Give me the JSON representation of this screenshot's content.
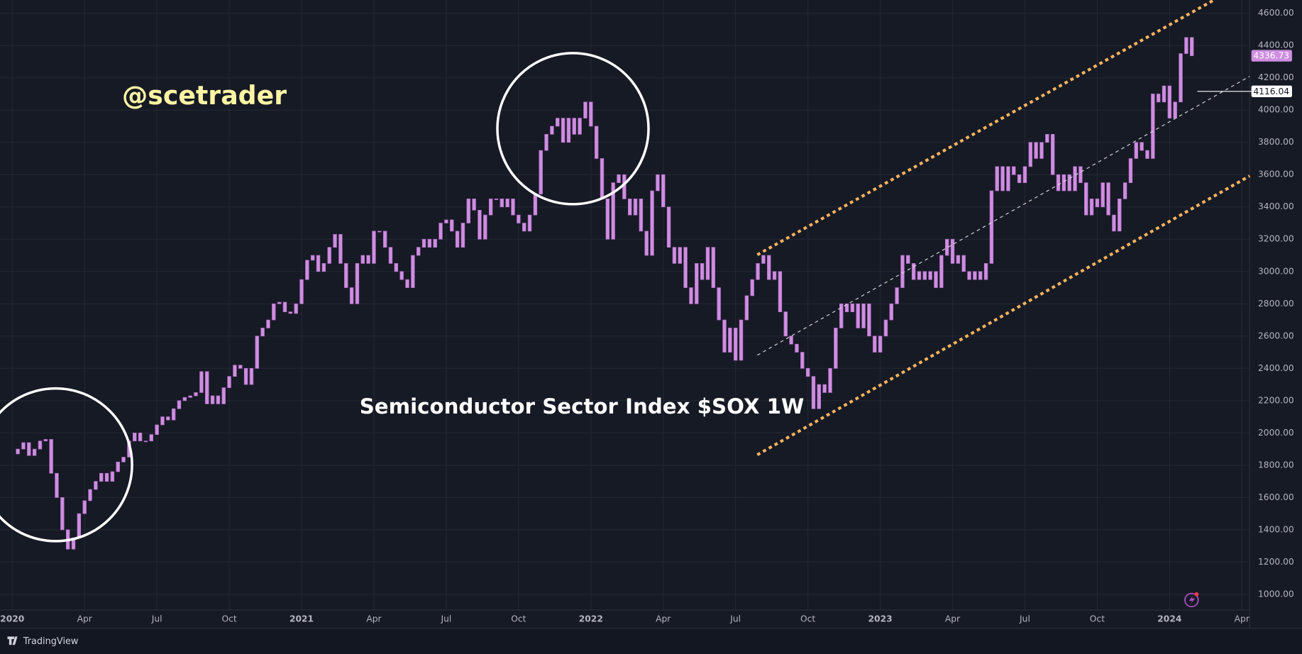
{
  "chart_data": {
    "type": "candlestick",
    "title": "Semiconductor Sector Index $SOX 1W",
    "watermark": "@scetrader",
    "brand": "TradingView",
    "color": "#ce8ee0",
    "values": [
      1870,
      1900,
      1940,
      1860,
      1900,
      1950,
      1960,
      1750,
      1600,
      1400,
      1280,
      1350,
      1500,
      1580,
      1650,
      1700,
      1750,
      1700,
      1760,
      1820,
      1850,
      1950,
      2000,
      1950,
      1950,
      1990,
      2050,
      2100,
      2080,
      2150,
      2200,
      2220,
      2230,
      2250,
      2380,
      2180,
      2230,
      2180,
      2280,
      2350,
      2420,
      2400,
      2300,
      2400,
      2600,
      2650,
      2700,
      2800,
      2810,
      2750,
      2740,
      2800,
      2950,
      3070,
      3100,
      3000,
      3050,
      3150,
      3230,
      3050,
      2900,
      2800,
      3050,
      3100,
      3050,
      3250,
      3250,
      3150,
      3050,
      3000,
      2950,
      2900,
      3100,
      3150,
      3200,
      3150,
      3200,
      3300,
      3320,
      3250,
      3150,
      3300,
      3450,
      3380,
      3200,
      3350,
      3450,
      3450,
      3400,
      3450,
      3350,
      3300,
      3250,
      3350,
      3480,
      3750,
      3850,
      3900,
      3950,
      3800,
      3950,
      3850,
      3950,
      4050,
      3900,
      3700,
      3450,
      3200,
      3550,
      3600,
      3450,
      3350,
      3450,
      3250,
      3100,
      3500,
      3600,
      3400,
      3150,
      3050,
      3150,
      2900,
      2800,
      3050,
      2950,
      3150,
      2900,
      2700,
      2500,
      2650,
      2450,
      2700,
      2850,
      2950,
      3050,
      3100,
      2950,
      3000,
      2750,
      2600,
      2550,
      2500,
      2400,
      2350,
      2150,
      2300,
      2250,
      2400,
      2650,
      2800,
      2750,
      2800,
      2650,
      2800,
      2600,
      2500,
      2600,
      2700,
      2800,
      2900,
      3100,
      3050,
      2950,
      3000,
      2950,
      3000,
      2900,
      3100,
      3200,
      3050,
      3100,
      3000,
      2950,
      3000,
      2950,
      3050,
      3500,
      3650,
      3500,
      3650,
      3600,
      3550,
      3650,
      3800,
      3700,
      3800,
      3850,
      3600,
      3500,
      3600,
      3500,
      3650,
      3550,
      3350,
      3450,
      3400,
      3550,
      3350,
      3250,
      3450,
      3550,
      3700,
      3800,
      3750,
      3700,
      4100,
      4050,
      4150,
      3950,
      4050,
      4350,
      4450,
      4336.73
    ],
    "price_line": 4116.04,
    "ylim": [
      903,
      4682
    ],
    "yticks": [
      {
        "value": 4600,
        "label": "4600.00"
      },
      {
        "value": 4400,
        "label": "4400.00"
      },
      {
        "value": 4200,
        "label": "4200.00"
      },
      {
        "value": 4000,
        "label": "4000.00"
      },
      {
        "value": 3800,
        "label": "3800.00"
      },
      {
        "value": 3600,
        "label": "3600.00"
      },
      {
        "value": 3400,
        "label": "3400.00"
      },
      {
        "value": 3200,
        "label": "3200.00"
      },
      {
        "value": 3000,
        "label": "3000.00"
      },
      {
        "value": 2800,
        "label": "2800.00"
      },
      {
        "value": 2600,
        "label": "2600.00"
      },
      {
        "value": 2400,
        "label": "2400.00"
      },
      {
        "value": 2200,
        "label": "2200.00"
      },
      {
        "value": 2000,
        "label": "2000.00"
      },
      {
        "value": 1800,
        "label": "1800.00"
      },
      {
        "value": 1600,
        "label": "1600.00"
      },
      {
        "value": 1400,
        "label": "1400.00"
      },
      {
        "value": 1200,
        "label": "1200.00"
      },
      {
        "value": 1000,
        "label": "1000.00"
      }
    ],
    "xlim": [
      -2.2,
      222.4
    ],
    "xticks": [
      {
        "value": 0,
        "label": "2020"
      },
      {
        "value": 13,
        "label": "Apr"
      },
      {
        "value": 26,
        "label": "Jul"
      },
      {
        "value": 39,
        "label": "Oct"
      },
      {
        "value": 52,
        "label": "2021"
      },
      {
        "value": 65,
        "label": "Apr"
      },
      {
        "value": 78,
        "label": "Jul"
      },
      {
        "value": 91,
        "label": "Oct"
      },
      {
        "value": 104,
        "label": "2022"
      },
      {
        "value": 117,
        "label": "Apr"
      },
      {
        "value": 130,
        "label": "Jul"
      },
      {
        "value": 143,
        "label": "Oct"
      },
      {
        "value": 156,
        "label": "2023"
      },
      {
        "value": 169,
        "label": "Apr"
      },
      {
        "value": 182,
        "label": "Jul"
      },
      {
        "value": 195,
        "label": "Oct"
      },
      {
        "value": 208,
        "label": "2024"
      },
      {
        "value": 221,
        "label": "Apr"
      }
    ],
    "grid": true
  }
}
